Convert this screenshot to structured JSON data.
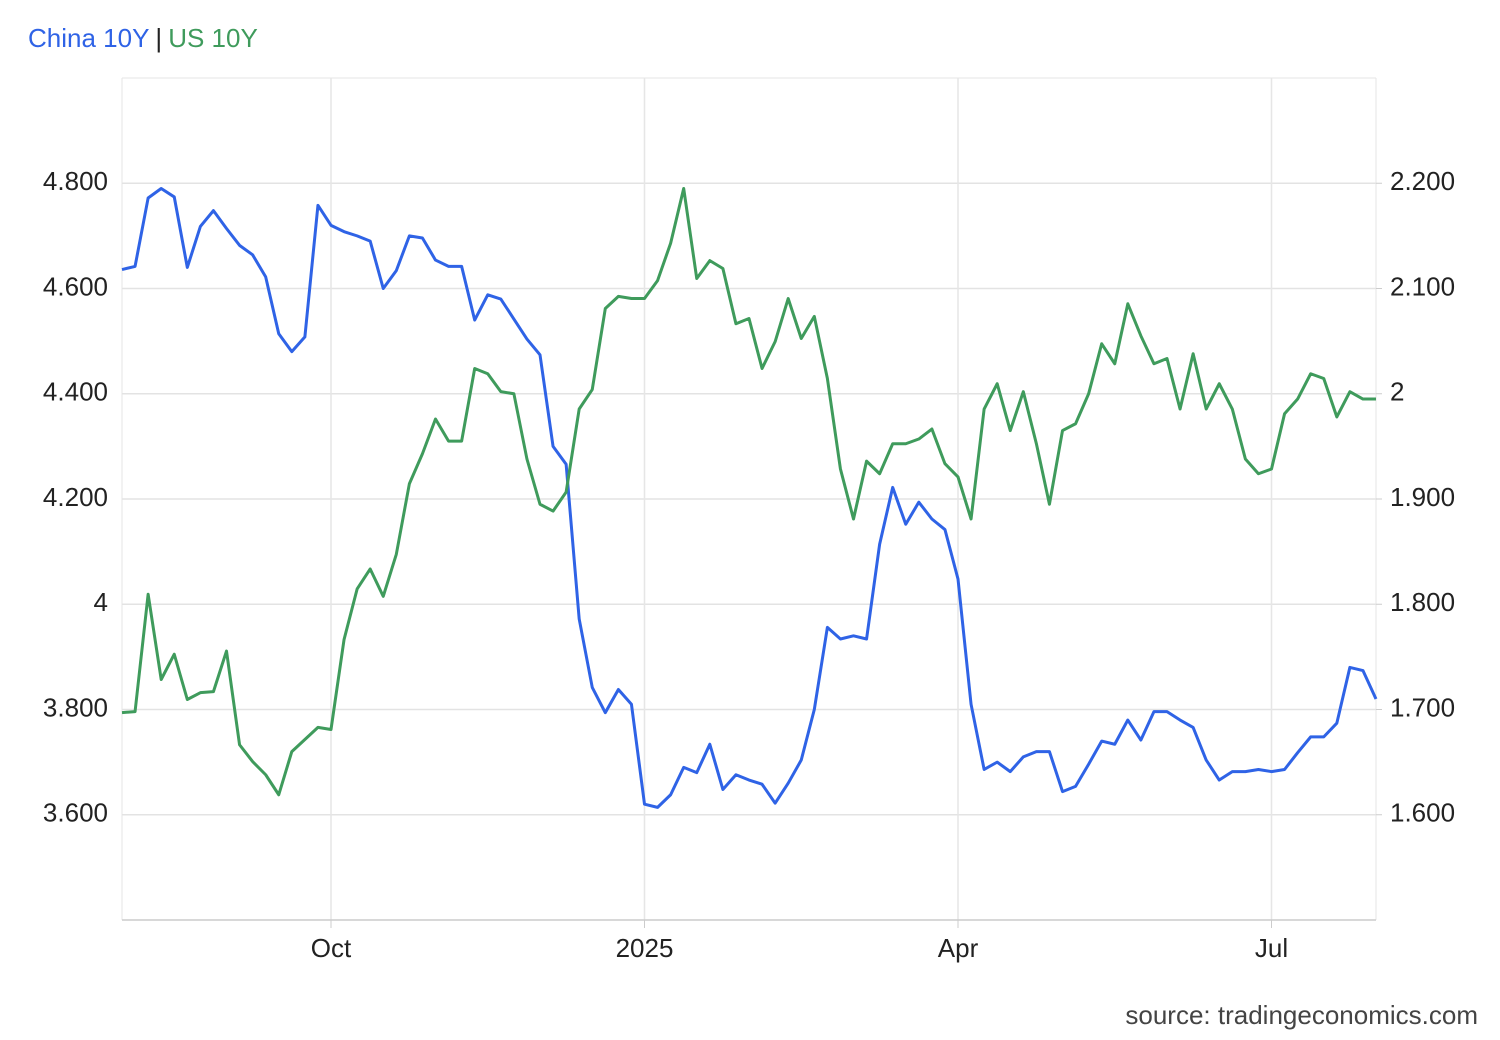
{
  "chart_data": {
    "type": "line",
    "legend_separator": "|",
    "source": "source: tradingeconomics.com",
    "categories": [
      null,
      null,
      null,
      null,
      null,
      null,
      null,
      null,
      null,
      null,
      null,
      null,
      null,
      null,
      null,
      null,
      "Oct",
      null,
      null,
      null,
      null,
      null,
      null,
      null,
      null,
      null,
      null,
      null,
      null,
      null,
      null,
      null,
      null,
      null,
      null,
      null,
      null,
      null,
      null,
      null,
      "2025",
      null,
      null,
      null,
      null,
      null,
      null,
      null,
      null,
      null,
      null,
      null,
      null,
      null,
      null,
      null,
      null,
      null,
      null,
      null,
      null,
      null,
      null,
      null,
      "Apr",
      null,
      null,
      null,
      null,
      null,
      null,
      null,
      null,
      null,
      null,
      null,
      null,
      null,
      null,
      null,
      null,
      null,
      null,
      null,
      null,
      null,
      null,
      null,
      "Jul",
      null,
      null,
      null,
      null,
      null,
      null,
      null,
      null
    ],
    "series": [
      {
        "name": "China 10Y",
        "color": "#2f63e6",
        "axis": "y2",
        "values": [
          2.118,
          2.121,
          2.186,
          2.195,
          2.187,
          2.12,
          2.159,
          2.174,
          2.157,
          2.141,
          2.132,
          2.111,
          2.057,
          2.04,
          2.054,
          2.179,
          2.16,
          2.154,
          2.15,
          2.145,
          2.1,
          2.117,
          2.15,
          2.148,
          2.127,
          2.121,
          2.121,
          2.07,
          2.094,
          2.09,
          2.071,
          2.052,
          2.037,
          1.95,
          1.933,
          1.786,
          1.721,
          1.697,
          1.719,
          1.705,
          1.61,
          1.607,
          1.619,
          1.645,
          1.64,
          1.667,
          1.624,
          1.638,
          1.633,
          1.629,
          1.611,
          1.63,
          1.652,
          1.7,
          1.778,
          1.767,
          1.77,
          1.767,
          1.857,
          1.911,
          1.876,
          1.897,
          1.881,
          1.871,
          1.824,
          1.705,
          1.643,
          1.65,
          1.641,
          1.655,
          1.66,
          1.66,
          1.622,
          1.627,
          1.648,
          1.67,
          1.667,
          1.69,
          1.671,
          1.698,
          1.698,
          1.69,
          1.683,
          1.652,
          1.633,
          1.641,
          1.641,
          1.643,
          1.641,
          1.643,
          1.659,
          1.674,
          1.674,
          1.687,
          1.74,
          1.737,
          1.71
        ]
      },
      {
        "name": "US 10Y",
        "color": "#3f9b5c",
        "axis": "y",
        "values": [
          3.794,
          3.796,
          4.019,
          3.857,
          3.905,
          3.819,
          3.832,
          3.834,
          3.911,
          3.733,
          3.701,
          3.676,
          3.638,
          3.72,
          3.743,
          3.766,
          3.762,
          3.933,
          4.029,
          4.067,
          4.015,
          4.095,
          4.229,
          4.286,
          4.352,
          4.31,
          4.31,
          4.448,
          4.438,
          4.404,
          4.4,
          4.276,
          4.19,
          4.177,
          4.213,
          4.371,
          4.408,
          4.562,
          4.585,
          4.581,
          4.581,
          4.615,
          4.686,
          4.79,
          4.619,
          4.653,
          4.638,
          4.533,
          4.543,
          4.448,
          4.499,
          4.581,
          4.505,
          4.547,
          4.429,
          4.257,
          4.162,
          4.272,
          4.248,
          4.305,
          4.305,
          4.314,
          4.333,
          4.267,
          4.242,
          4.162,
          4.371,
          4.419,
          4.33,
          4.404,
          4.305,
          4.19,
          4.33,
          4.343,
          4.4,
          4.495,
          4.457,
          4.571,
          4.51,
          4.457,
          4.467,
          4.371,
          4.476,
          4.371,
          4.419,
          4.371,
          4.276,
          4.248,
          4.257,
          4.362,
          4.39,
          4.438,
          4.429,
          4.356,
          4.404,
          4.39,
          4.39
        ]
      }
    ],
    "ylim": [
      3.4,
      5.0
    ],
    "yticks": [
      {
        "value": 3.6,
        "label": "3.600"
      },
      {
        "value": 3.8,
        "label": "3.800"
      },
      4,
      {
        "value": 4.2,
        "label": "4.200"
      },
      {
        "value": 4.4,
        "label": "4.400"
      },
      {
        "value": 4.6,
        "label": "4.600"
      },
      {
        "value": 4.8,
        "label": "4.800"
      }
    ],
    "y2lim": [
      1.5,
      2.3
    ],
    "y2ticks": [
      {
        "value": 1.6,
        "label": "1.600"
      },
      {
        "value": 1.7,
        "label": "1.700"
      },
      {
        "value": 1.8,
        "label": "1.800"
      },
      {
        "value": 1.9,
        "label": "1.900"
      },
      2,
      {
        "value": 2.1,
        "label": "2.100"
      },
      {
        "value": 2.2,
        "label": "2.200"
      }
    ],
    "grid": true
  }
}
